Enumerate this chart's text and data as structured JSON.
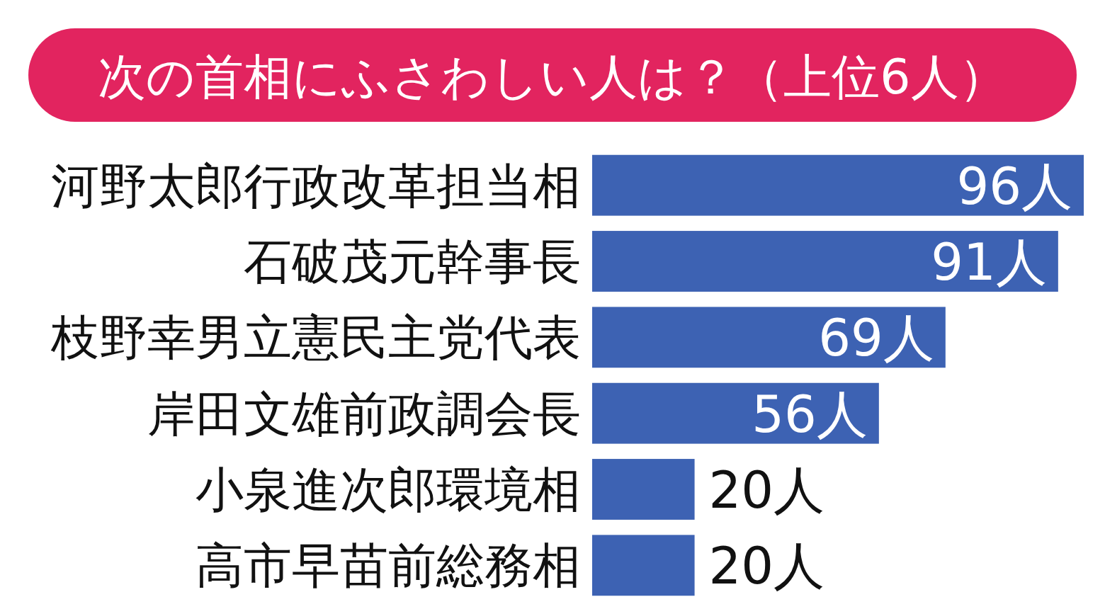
{
  "chart_data": {
    "type": "bar",
    "orientation": "horizontal",
    "title": "次の首相にふさわしい人は？（上位6人）",
    "categories": [
      "河野太郎行政改革担当相",
      "石破茂元幹事長",
      "枝野幸男立憲民主党代表",
      "岸田文雄前政調会長",
      "小泉進次郎環境相",
      "高市早苗前総務相"
    ],
    "values": [
      96,
      91,
      69,
      56,
      20,
      20
    ],
    "value_labels": [
      "96人",
      "91人",
      "69人",
      "56人",
      "20人",
      "20人"
    ],
    "color": "#3d62b3"
  }
}
